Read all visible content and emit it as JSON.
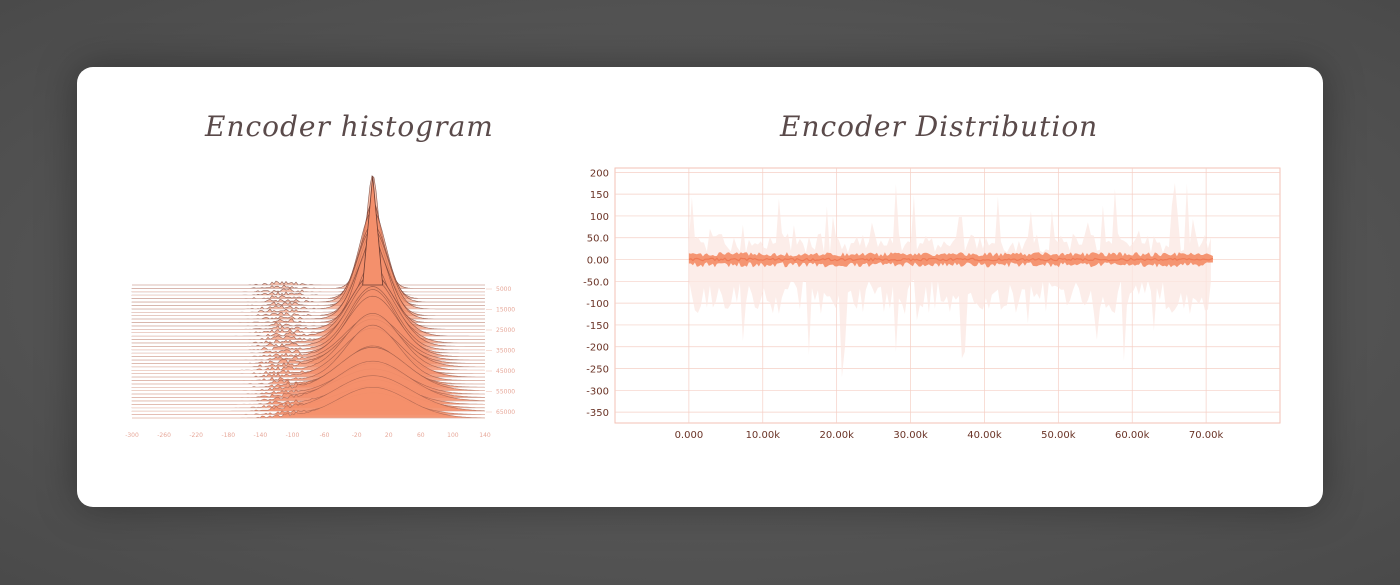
{
  "chart_data": [
    {
      "type": "area",
      "title": "Encoder histogram",
      "x_ticks": [
        "-300",
        "-260",
        "-220",
        "-180",
        "-140",
        "-100",
        "-60",
        "-20",
        "20",
        "60",
        "100",
        "140"
      ],
      "step_ticks": [
        "5000",
        "15000",
        "25000",
        "35000",
        "45000",
        "55000",
        "65000"
      ],
      "xlim": [
        -300,
        140
      ],
      "steps_range": [
        0,
        70000
      ],
      "peak_x": 0,
      "color": "#f4906c"
    },
    {
      "type": "area",
      "title": "Encoder Distribution",
      "y_ticks": [
        "200",
        "150",
        "100",
        "50.0",
        "0.00",
        "-50.0",
        "-100",
        "-150",
        "-200",
        "-250",
        "-300",
        "-350"
      ],
      "x_ticks": [
        "0.000",
        "10.00k",
        "20.00k",
        "30.00k",
        "40.00k",
        "50.00k",
        "60.00k",
        "70.00k"
      ],
      "ylim": [
        -375,
        210
      ],
      "xlim": [
        -10000,
        80000
      ],
      "data_end_step": 71000,
      "median": 0,
      "inner_band": [
        -20,
        20
      ],
      "outer_band": [
        -300,
        200
      ],
      "color": "#f4906c",
      "band_color": "#fbe7e1"
    }
  ]
}
